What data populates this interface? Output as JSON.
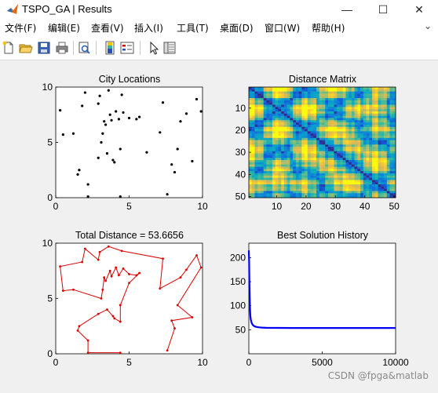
{
  "window": {
    "title": "TSPO_GA | Results",
    "minimize_glyph": "—",
    "maximize_glyph": "☐",
    "close_glyph": "✕"
  },
  "menu": [
    {
      "label": "文件(F)"
    },
    {
      "label": "编辑(E)"
    },
    {
      "label": "查看(V)"
    },
    {
      "label": "插入(I)"
    },
    {
      "label": "工具(T)"
    },
    {
      "label": "桌面(D)"
    },
    {
      "label": "窗口(W)"
    },
    {
      "label": "帮助(H)"
    }
  ],
  "menu_expand_glyph": "⌄",
  "toolbar_icons": [
    "new-figure-icon",
    "open-file-icon",
    "save-icon",
    "print-icon",
    "print-preview-icon",
    "colorbar-icon",
    "legend-icon",
    "edit-pointer-icon",
    "property-inspector-icon"
  ],
  "watermark": "CSDN @fpga&matlab",
  "colors": {
    "points": "#000000",
    "route": "#dd0000",
    "history": "#0000ff"
  },
  "chart_data": [
    {
      "type": "scatter",
      "title": "City Locations",
      "xlim": [
        0,
        10
      ],
      "ylim": [
        0,
        10
      ],
      "xticks": [
        0,
        5,
        10
      ],
      "yticks": [
        0,
        5,
        10
      ],
      "points": [
        [
          0.3,
          7.9
        ],
        [
          0.5,
          5.7
        ],
        [
          1.2,
          5.8
        ],
        [
          1.5,
          2.1
        ],
        [
          1.6,
          2.5
        ],
        [
          1.8,
          8.3
        ],
        [
          2.0,
          9.5
        ],
        [
          2.2,
          1.2
        ],
        [
          2.2,
          0.1
        ],
        [
          2.9,
          3.6
        ],
        [
          2.9,
          8.5
        ],
        [
          3.0,
          9.2
        ],
        [
          3.1,
          5.0
        ],
        [
          3.2,
          5.8
        ],
        [
          3.3,
          6.9
        ],
        [
          3.4,
          6.6
        ],
        [
          3.5,
          4.0
        ],
        [
          3.6,
          9.7
        ],
        [
          3.7,
          7.5
        ],
        [
          3.8,
          7.0
        ],
        [
          3.9,
          3.4
        ],
        [
          4.0,
          3.2
        ],
        [
          4.1,
          7.8
        ],
        [
          4.3,
          7.1
        ],
        [
          4.4,
          0.1
        ],
        [
          4.4,
          4.4
        ],
        [
          4.5,
          9.3
        ],
        [
          4.6,
          7.7
        ],
        [
          5.0,
          7.2
        ],
        [
          5.5,
          7.1
        ],
        [
          5.7,
          7.3
        ],
        [
          6.2,
          4.1
        ],
        [
          7.1,
          5.9
        ],
        [
          7.3,
          8.6
        ],
        [
          7.6,
          0.3
        ],
        [
          8.3,
          4.4
        ],
        [
          8.5,
          6.9
        ],
        [
          8.9,
          7.6
        ],
        [
          9.3,
          3.3
        ],
        [
          9.6,
          8.9
        ],
        [
          9.9,
          7.8
        ],
        [
          8.1,
          2.3
        ],
        [
          7.9,
          3.0
        ]
      ]
    },
    {
      "type": "heatmap",
      "title": "Distance Matrix",
      "xlim": [
        0.5,
        50.5
      ],
      "ylim": [
        0.5,
        50.5
      ],
      "xticks": [
        10,
        20,
        30,
        40,
        50
      ],
      "yticks": [
        10,
        20,
        30,
        40,
        50
      ],
      "size": 50
    },
    {
      "type": "line",
      "title": "Total Distance = 53.6656",
      "xlim": [
        0,
        10
      ],
      "ylim": [
        0,
        10
      ],
      "xticks": [
        0,
        5,
        10
      ],
      "yticks": [
        0,
        5,
        10
      ],
      "route": [
        [
          4.4,
          0.1
        ],
        [
          2.2,
          0.1
        ],
        [
          2.2,
          1.2
        ],
        [
          1.5,
          2.1
        ],
        [
          1.6,
          2.5
        ],
        [
          2.9,
          3.6
        ],
        [
          3.5,
          4.0
        ],
        [
          3.9,
          3.4
        ],
        [
          4.0,
          3.2
        ],
        [
          4.4,
          2.9
        ],
        [
          4.4,
          4.4
        ],
        [
          5.0,
          6.4
        ],
        [
          5.7,
          7.3
        ],
        [
          5.5,
          7.1
        ],
        [
          5.0,
          7.2
        ],
        [
          4.6,
          7.7
        ],
        [
          4.3,
          7.1
        ],
        [
          4.1,
          7.8
        ],
        [
          3.8,
          7.0
        ],
        [
          3.7,
          7.5
        ],
        [
          3.4,
          6.6
        ],
        [
          3.3,
          6.9
        ],
        [
          3.2,
          5.8
        ],
        [
          3.1,
          5.0
        ],
        [
          1.2,
          5.8
        ],
        [
          0.5,
          5.7
        ],
        [
          0.3,
          7.9
        ],
        [
          1.8,
          8.3
        ],
        [
          2.0,
          9.5
        ],
        [
          2.9,
          8.5
        ],
        [
          3.0,
          9.2
        ],
        [
          3.6,
          9.7
        ],
        [
          4.5,
          9.3
        ],
        [
          7.3,
          8.6
        ],
        [
          7.1,
          5.9
        ],
        [
          8.5,
          6.9
        ],
        [
          8.9,
          7.6
        ],
        [
          9.6,
          8.9
        ],
        [
          9.9,
          7.8
        ],
        [
          8.3,
          4.4
        ],
        [
          9.3,
          3.3
        ],
        [
          7.9,
          3.0
        ],
        [
          8.1,
          2.3
        ],
        [
          7.6,
          0.3
        ]
      ]
    },
    {
      "type": "line",
      "title": "Best Solution History",
      "xlim": [
        0,
        10000
      ],
      "ylim": [
        0,
        230
      ],
      "xticks": [
        0,
        5000,
        10000
      ],
      "yticks": [
        50,
        100,
        150,
        200
      ],
      "series": [
        {
          "x": [
            0,
            20,
            40,
            60,
            80,
            100,
            130,
            160,
            200,
            250,
            300,
            400,
            500,
            700,
            900,
            1200,
            1600,
            2000,
            3000,
            5000,
            7500,
            10000
          ],
          "y": [
            215,
            190,
            150,
            120,
            95,
            80,
            72,
            68,
            64,
            61,
            59,
            57,
            56,
            55,
            54.5,
            54,
            53.9,
            53.8,
            53.7,
            53.7,
            53.67,
            53.67
          ]
        }
      ]
    }
  ]
}
